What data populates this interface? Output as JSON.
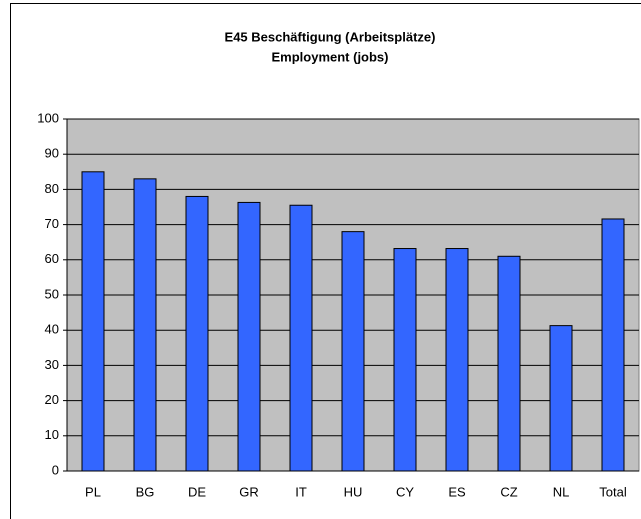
{
  "chart_data": {
    "type": "bar",
    "title": "E45  Beschäftigung (Arbeitsplätze)",
    "subtitle": "Employment (jobs)",
    "categories": [
      "PL",
      "BG",
      "DE",
      "GR",
      "IT",
      "HU",
      "CY",
      "ES",
      "CZ",
      "NL",
      "Total"
    ],
    "values": [
      85,
      83,
      78,
      76.3,
      75.5,
      68,
      63.2,
      63.2,
      61,
      41.3,
      71.6
    ],
    "color": "#3366ff",
    "ylim": [
      0,
      100
    ],
    "yticks": [
      0,
      10,
      20,
      30,
      40,
      50,
      60,
      70,
      80,
      90,
      100
    ],
    "grid": true
  }
}
